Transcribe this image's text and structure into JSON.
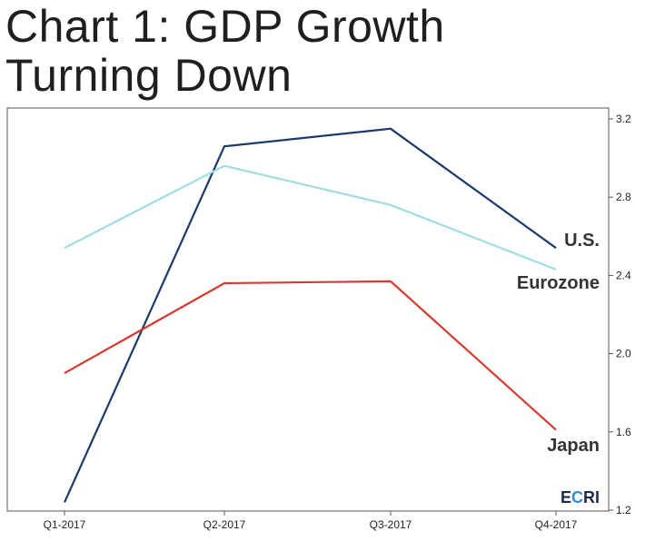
{
  "chart_data": {
    "type": "line",
    "title": "Chart 1: GDP Growth Turning Down",
    "title_lines": [
      "Chart 1: GDP Growth",
      "Turning Down"
    ],
    "categories": [
      "Q1-2017",
      "Q2-2017",
      "Q3-2017",
      "Q4-2017"
    ],
    "ylim": [
      1.2,
      3.2
    ],
    "yticks": [
      "1.2",
      "1.6",
      "2.0",
      "2.4",
      "2.8",
      "3.2"
    ],
    "yaxis_side": "right",
    "grid": false,
    "xlabel": "",
    "ylabel": "",
    "series": [
      {
        "name": "U.S.",
        "color": "#1b3a6b",
        "values": [
          1.24,
          3.06,
          3.15,
          2.54
        ]
      },
      {
        "name": "Eurozone",
        "color": "#9edde3",
        "values": [
          2.54,
          2.96,
          2.76,
          2.43
        ]
      },
      {
        "name": "Japan",
        "color": "#d9392e",
        "values": [
          1.9,
          2.36,
          2.37,
          1.61
        ]
      }
    ]
  },
  "logo": {
    "text": "ECRI",
    "color_dark": "#1f2a44",
    "color_accent": "#2a8fd6"
  }
}
